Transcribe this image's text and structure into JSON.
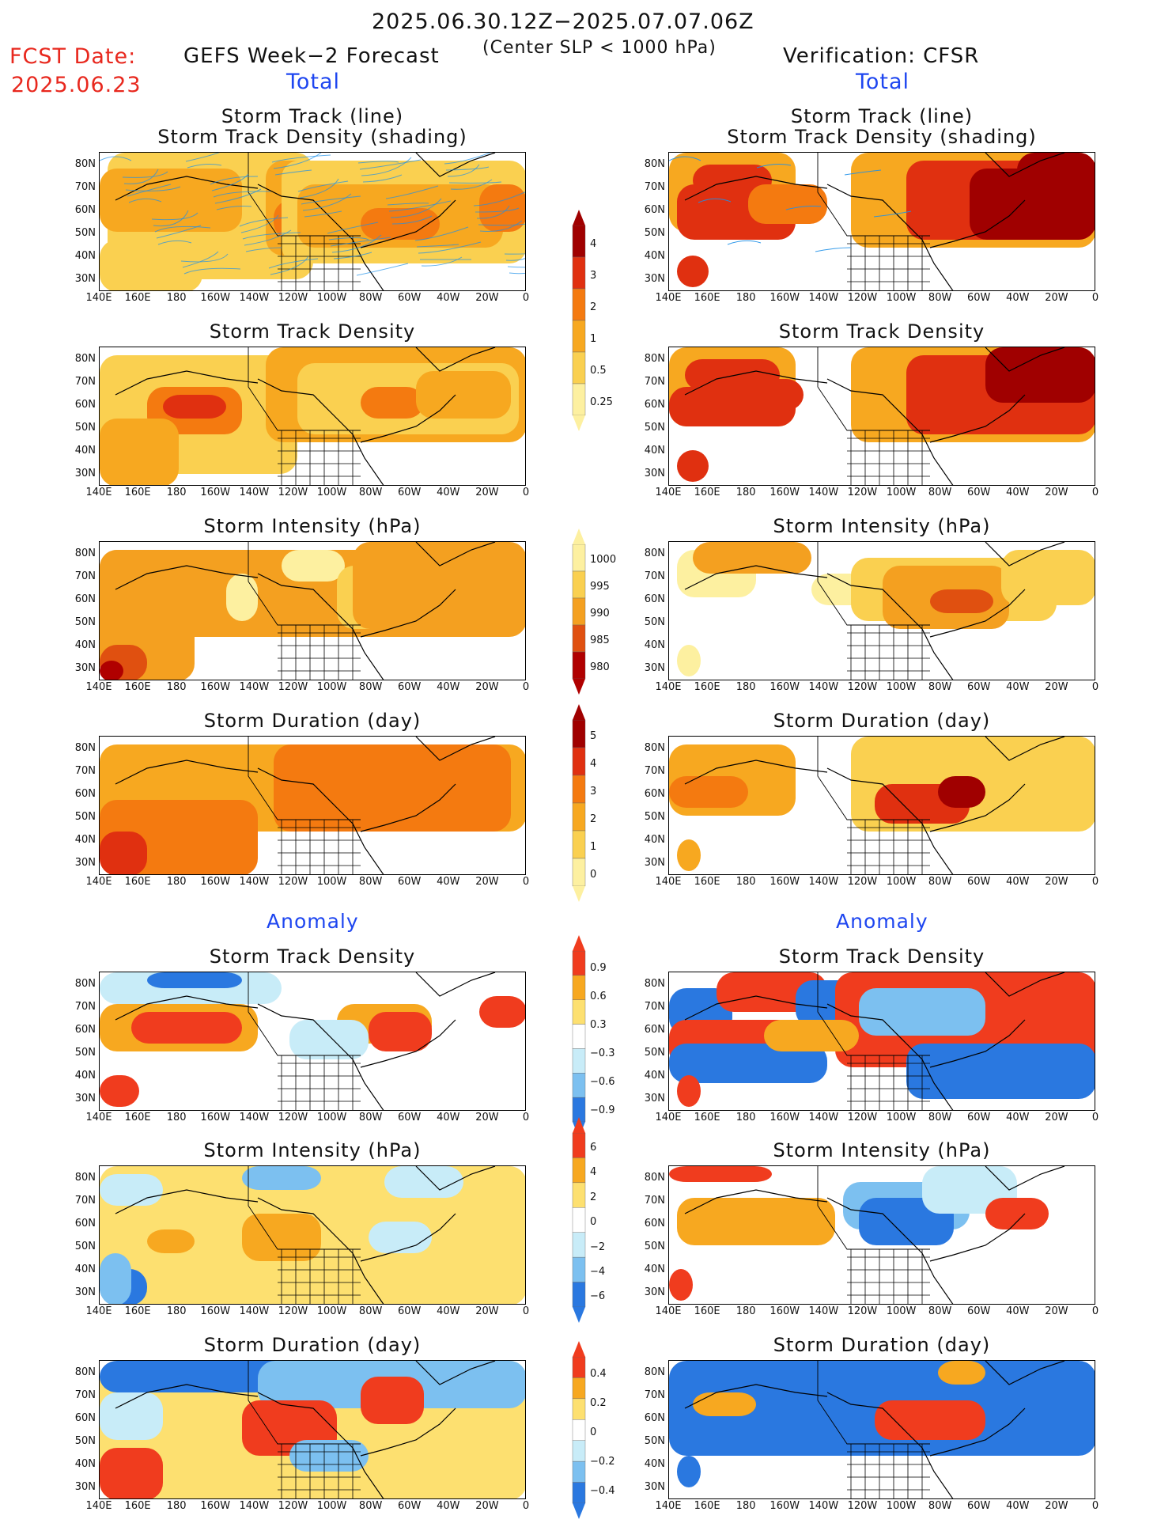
{
  "header": {
    "date_range": "2025.06.30.12Z−2025.07.07.06Z",
    "fcst_label": "FCST Date:",
    "fcst_date": "2025.06.23",
    "left_title": "GEFS Week−2 Forecast",
    "center_note": "(Center SLP < 1000 hPa)",
    "right_title": "Verification: CFSR",
    "total_label": "Total",
    "anomaly_label": "Anomaly"
  },
  "panel_titles": {
    "track_line": "Storm Track (line)",
    "track_shading": "Storm Track Density (shading)",
    "track_density": "Storm Track Density",
    "intensity": "Storm Intensity (hPa)",
    "duration": "Storm Duration (day)"
  },
  "axes": {
    "lat_ticks": [
      "80N",
      "70N",
      "60N",
      "50N",
      "40N",
      "30N"
    ],
    "lon_ticks": [
      "140E",
      "160E",
      "180",
      "160W",
      "140W",
      "120W",
      "100W",
      "80W",
      "60W",
      "40W",
      "20W",
      "0"
    ]
  },
  "colorbars": {
    "density": {
      "labels": [
        "4",
        "3",
        "2",
        "1",
        "0.5",
        "0.25"
      ],
      "colors": [
        "#a00000",
        "#e03010",
        "#f47a10",
        "#f7a820",
        "#fad050",
        "#fdf0a0"
      ]
    },
    "intensity": {
      "labels": [
        "1000",
        "995",
        "990",
        "985",
        "980"
      ],
      "colors": [
        "#fdf0a0",
        "#fad050",
        "#f4a020",
        "#e05010",
        "#b00000"
      ]
    },
    "duration": {
      "labels": [
        "5",
        "4",
        "3",
        "2",
        "1",
        "0"
      ],
      "colors": [
        "#a00000",
        "#e03010",
        "#f47a10",
        "#f7a820",
        "#fad050",
        "#fdf0a0"
      ]
    },
    "density_anom": {
      "labels": [
        "0.9",
        "0.6",
        "0.3",
        "−0.3",
        "−0.6",
        "−0.9"
      ],
      "pos": [
        "#f03c1e",
        "#f7a820",
        "#fde070"
      ],
      "neg": [
        "#c8ecf8",
        "#7cc0f0",
        "#2a78e0"
      ]
    },
    "intensity_anom": {
      "labels": [
        "6",
        "4",
        "2",
        "0",
        "−2",
        "−4",
        "−6"
      ],
      "pos": [
        "#f03c1e",
        "#f7a820",
        "#fde070"
      ],
      "neg": [
        "#c8ecf8",
        "#7cc0f0",
        "#2a78e0"
      ]
    },
    "duration_anom": {
      "labels": [
        "0.4",
        "0.2",
        "0",
        "−0.2",
        "−0.4"
      ],
      "pos": [
        "#f03c1e",
        "#f7a820",
        "#fde070"
      ],
      "neg": [
        "#c8ecf8",
        "#7cc0f0",
        "#2a78e0"
      ]
    }
  }
}
